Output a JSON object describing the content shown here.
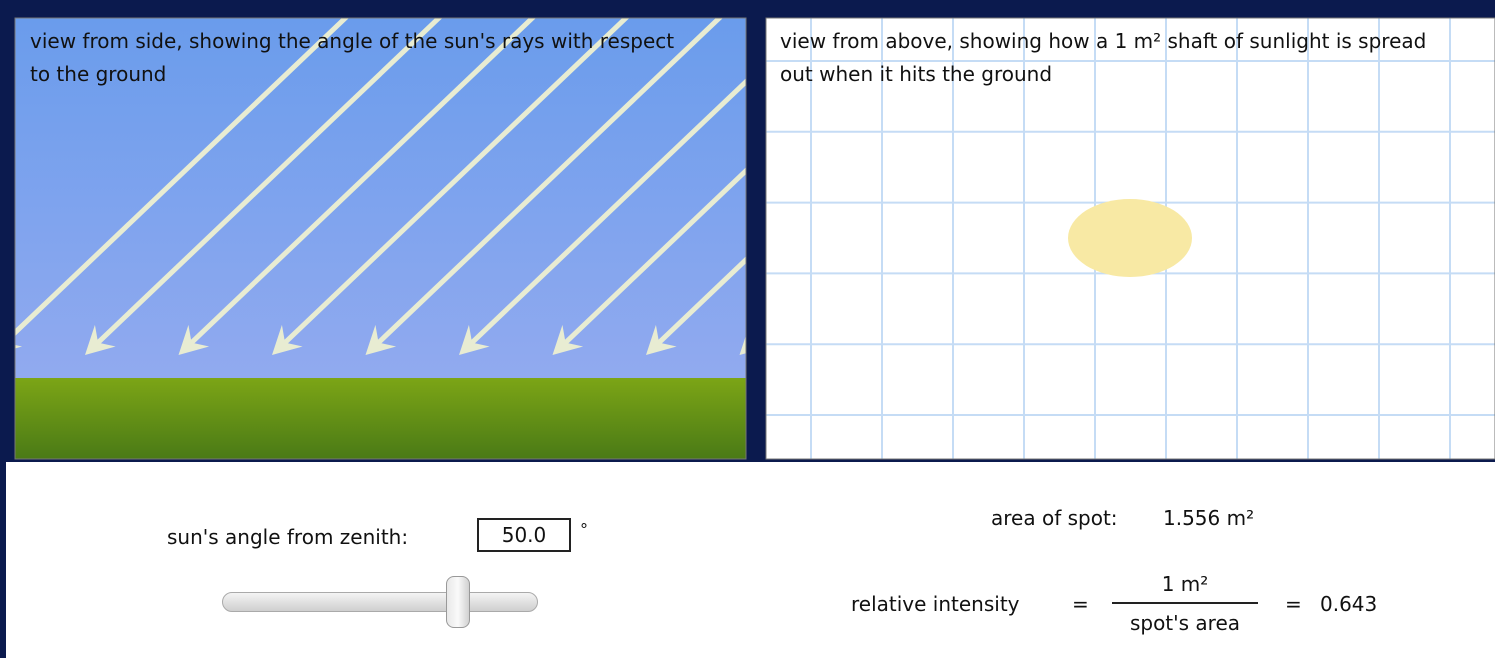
{
  "side_view": {
    "caption": "view from side, showing the angle of the sun's rays with respect to the ground"
  },
  "top_view": {
    "caption": "view from above, showing how a 1 m² shaft of sunlight is spread out when it hits the ground"
  },
  "controls": {
    "angle_label": "sun's angle from zenith:",
    "angle_value": "50.0",
    "angle_unit": "°"
  },
  "results": {
    "area_label": "area of spot:",
    "area_value": "1.556 m²",
    "intensity_label": "relative intensity",
    "equals": "=",
    "numerator": "1 m²",
    "denominator": "spot's area",
    "intensity_value": "0.643"
  }
}
